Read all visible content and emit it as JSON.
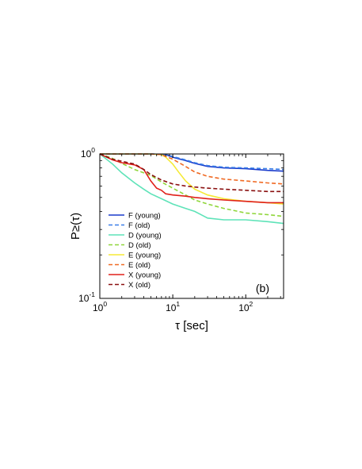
{
  "chart_data": {
    "type": "line",
    "xscale": "log",
    "yscale": "log",
    "xlim": [
      1,
      330
    ],
    "ylim": [
      0.1,
      1
    ],
    "xlabel": "τ [sec]",
    "ylabel": "P≥(τ)",
    "panel_label": "(b)",
    "grid": false,
    "legend_position": "left-center",
    "x_ticks": [
      {
        "value": 1,
        "base": "10",
        "exp": "0"
      },
      {
        "value": 10,
        "base": "10",
        "exp": "1"
      },
      {
        "value": 100,
        "base": "10",
        "exp": "2"
      }
    ],
    "y_ticks": [
      {
        "value": 0.1,
        "base": "10",
        "exp": "-1"
      },
      {
        "value": 1,
        "base": "10",
        "exp": "0"
      }
    ],
    "series": [
      {
        "name": "F (young)",
        "color": "#1a3ccc",
        "dash": "solid",
        "x": [
          1,
          5,
          8,
          10,
          15,
          20,
          30,
          50,
          100,
          200,
          330
        ],
        "y": [
          1.0,
          1.0,
          0.99,
          0.95,
          0.9,
          0.86,
          0.82,
          0.8,
          0.79,
          0.77,
          0.76
        ]
      },
      {
        "name": "F (old)",
        "color": "#3a7fe8",
        "dash": "dash",
        "x": [
          1,
          5,
          8,
          10,
          15,
          20,
          30,
          50,
          100,
          200,
          330
        ],
        "y": [
          1.0,
          1.0,
          0.99,
          0.96,
          0.91,
          0.87,
          0.83,
          0.81,
          0.8,
          0.79,
          0.78
        ]
      },
      {
        "name": "D (young)",
        "color": "#5ee3b8",
        "dash": "solid",
        "x": [
          1,
          1.5,
          2,
          3,
          4,
          5,
          7,
          10,
          15,
          20,
          30,
          50,
          100,
          200,
          330
        ],
        "y": [
          1.0,
          0.85,
          0.74,
          0.63,
          0.57,
          0.53,
          0.49,
          0.45,
          0.42,
          0.4,
          0.36,
          0.35,
          0.35,
          0.34,
          0.33
        ]
      },
      {
        "name": "D (old)",
        "color": "#8fd63a",
        "dash": "dash",
        "x": [
          1,
          1.5,
          2,
          3,
          5,
          7,
          10,
          15,
          20,
          30,
          50,
          100,
          200,
          330
        ],
        "y": [
          1.0,
          0.93,
          0.86,
          0.78,
          0.71,
          0.64,
          0.58,
          0.52,
          0.48,
          0.45,
          0.42,
          0.39,
          0.38,
          0.37
        ]
      },
      {
        "name": "E (young)",
        "color": "#f5ea36",
        "dash": "solid",
        "x": [
          1,
          5,
          7,
          8,
          10,
          12,
          15,
          20,
          30,
          50,
          100,
          200,
          330
        ],
        "y": [
          1.0,
          1.0,
          0.99,
          0.95,
          0.85,
          0.75,
          0.65,
          0.57,
          0.52,
          0.49,
          0.47,
          0.46,
          0.45
        ]
      },
      {
        "name": "E (old)",
        "color": "#f06a24",
        "dash": "dash",
        "x": [
          1,
          5,
          7,
          10,
          15,
          20,
          30,
          50,
          100,
          200,
          330
        ],
        "y": [
          1.0,
          1.0,
          0.99,
          0.92,
          0.82,
          0.75,
          0.7,
          0.67,
          0.65,
          0.63,
          0.62
        ]
      },
      {
        "name": "X (young)",
        "color": "#e0201a",
        "dash": "solid",
        "x": [
          1,
          1.5,
          2,
          3,
          4,
          5,
          6,
          7,
          8,
          10,
          15,
          20,
          30,
          50,
          100,
          200,
          330
        ],
        "y": [
          1.0,
          0.91,
          0.87,
          0.84,
          0.78,
          0.65,
          0.58,
          0.56,
          0.53,
          0.52,
          0.51,
          0.5,
          0.49,
          0.48,
          0.47,
          0.46,
          0.46
        ]
      },
      {
        "name": "X (old)",
        "color": "#8a1010",
        "dash": "dash",
        "x": [
          1,
          1.5,
          2,
          3,
          4,
          5,
          7,
          10,
          15,
          20,
          30,
          50,
          100,
          200,
          330
        ],
        "y": [
          1.0,
          0.92,
          0.89,
          0.85,
          0.78,
          0.72,
          0.66,
          0.62,
          0.6,
          0.59,
          0.58,
          0.57,
          0.56,
          0.55,
          0.55
        ]
      }
    ]
  }
}
